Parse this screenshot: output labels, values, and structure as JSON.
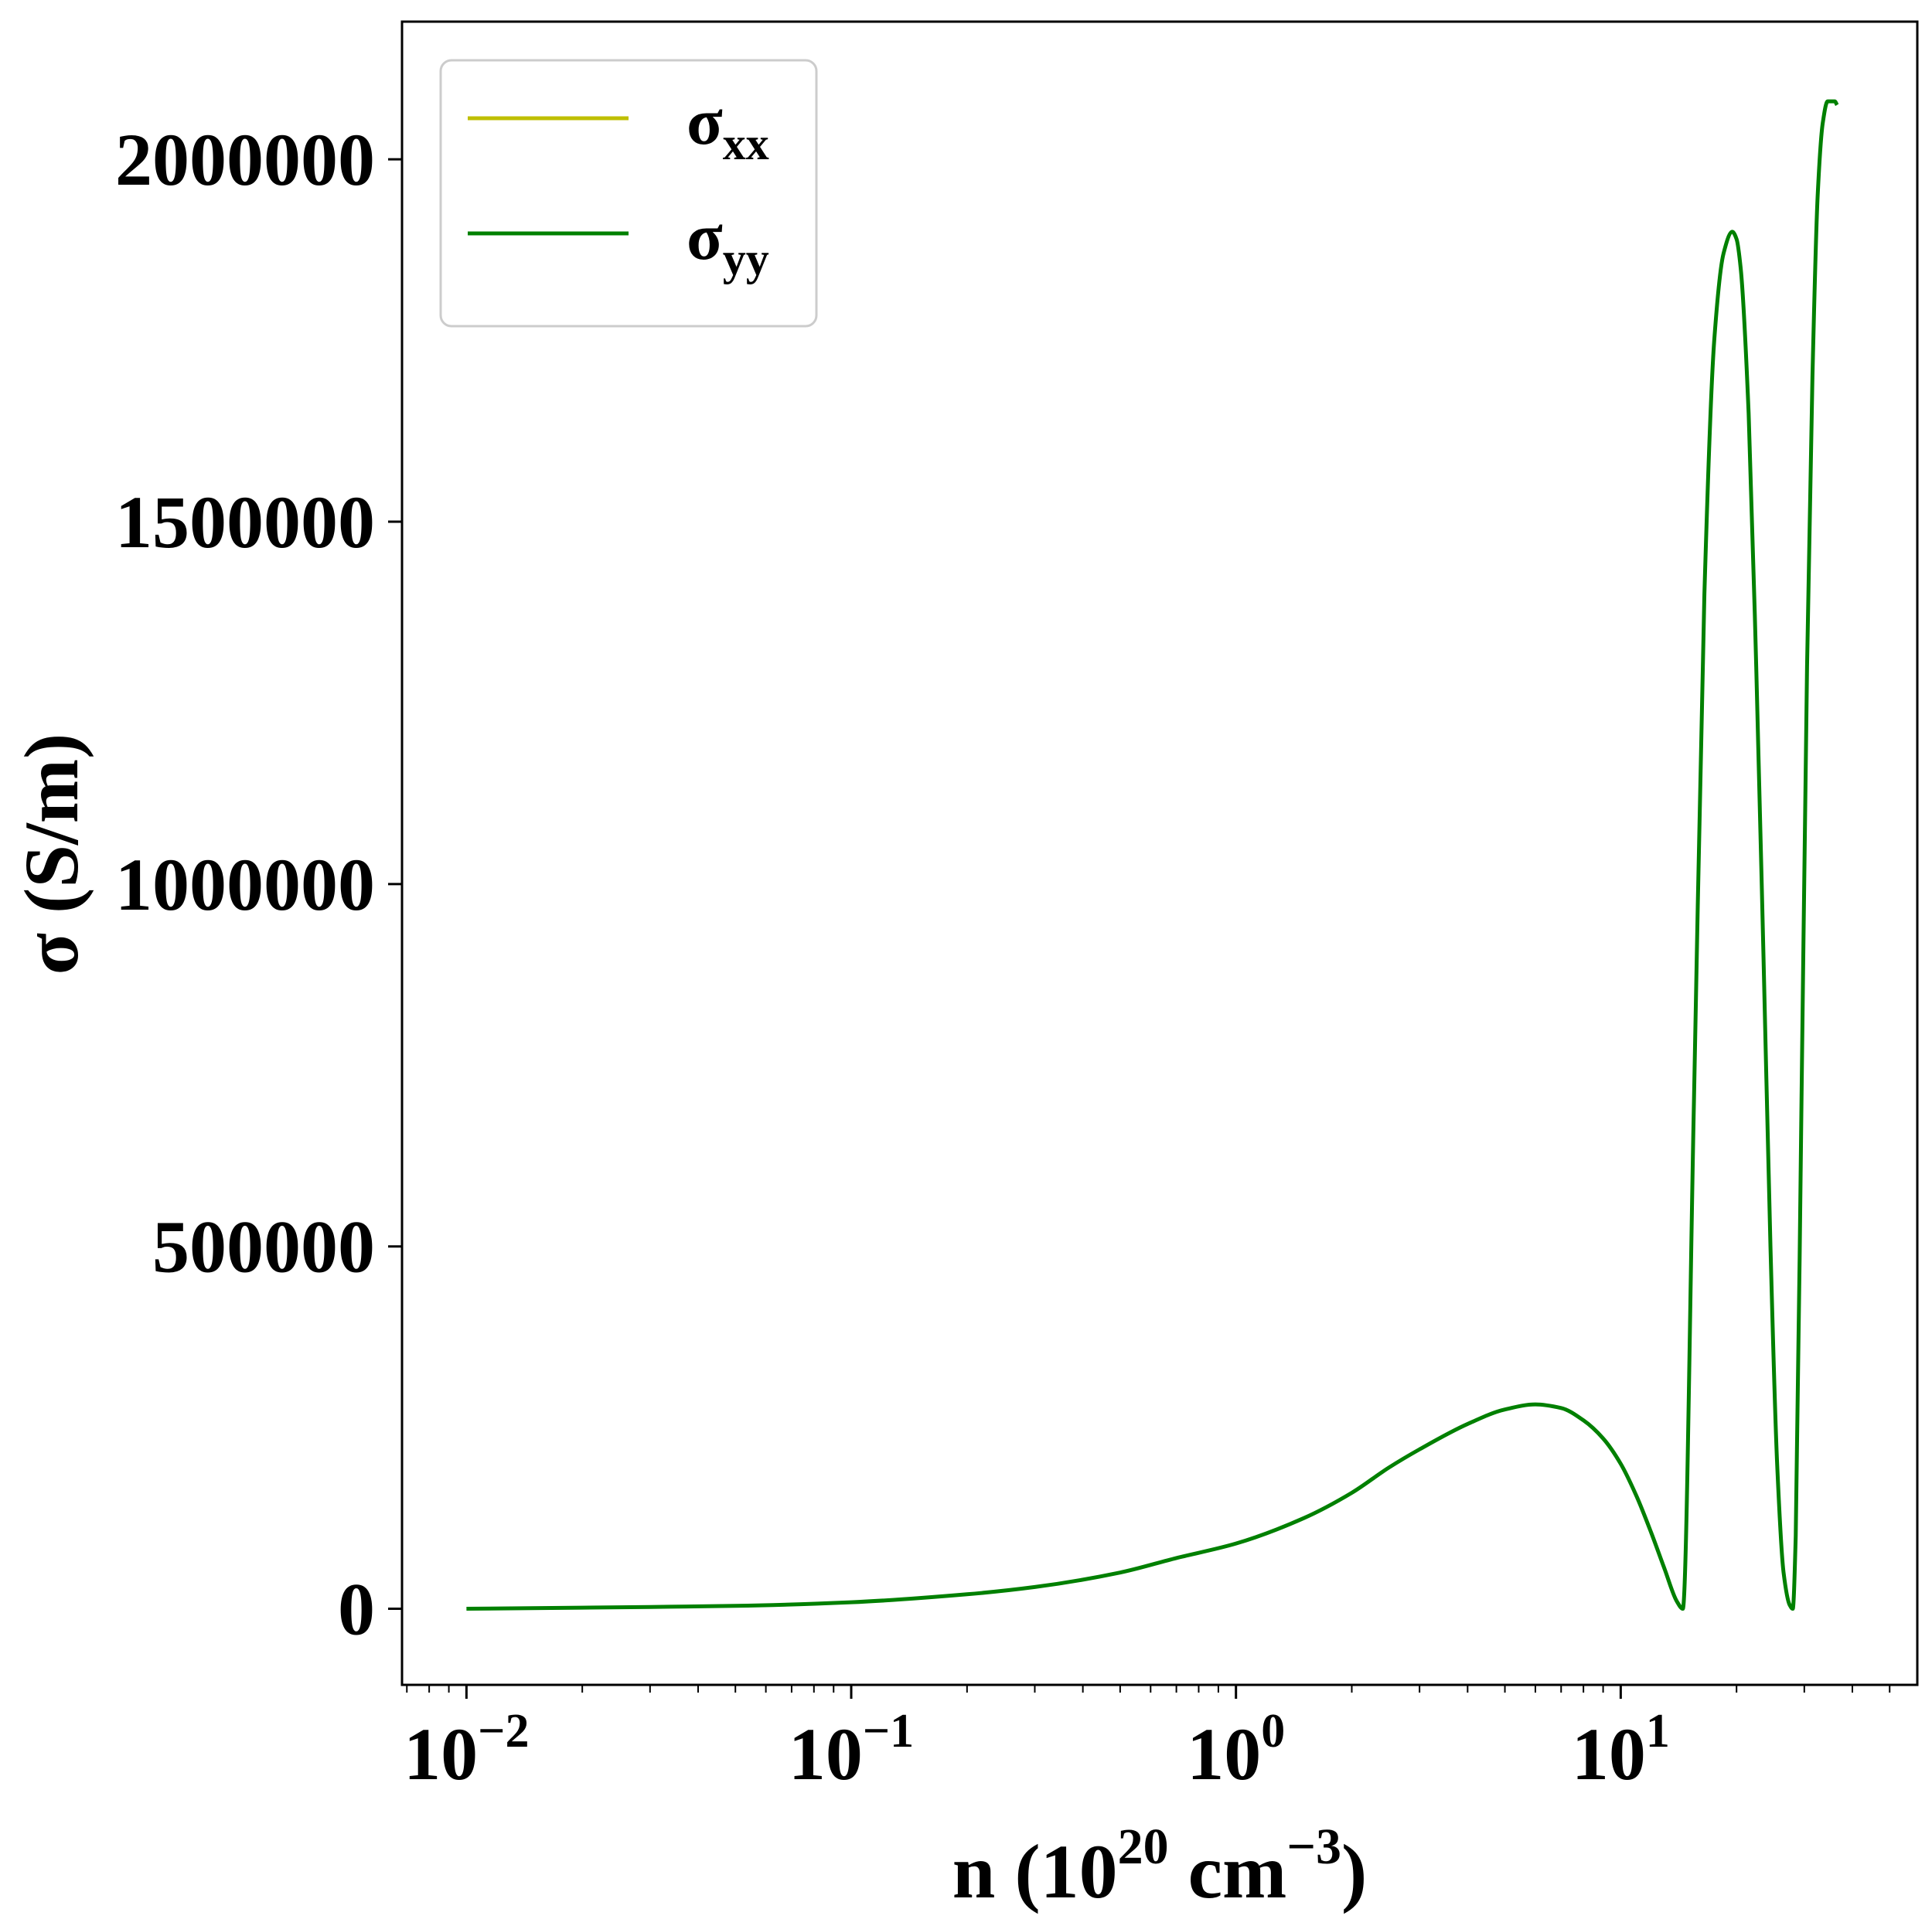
{
  "chart_data": {
    "type": "line",
    "xscale": "log",
    "xlim": [
      0.0068,
      59.0
    ],
    "ylim": [
      -105000,
      2190000
    ],
    "grid": false,
    "legend_position": "upper-left",
    "x_ticks": [
      {
        "value": 0.01,
        "base": "10",
        "exp": "−2"
      },
      {
        "value": 0.1,
        "base": "10",
        "exp": "−1"
      },
      {
        "value": 1,
        "base": "10",
        "exp": "0"
      },
      {
        "value": 10,
        "base": "10",
        "exp": "1"
      }
    ],
    "y_ticks": [
      {
        "value": 0,
        "label": "0"
      },
      {
        "value": 500000,
        "label": "500000"
      },
      {
        "value": 1000000,
        "label": "1000000"
      },
      {
        "value": 1500000,
        "label": "1500000"
      },
      {
        "value": 2000000,
        "label": "2000000"
      }
    ],
    "xlabel": {
      "prefix": "n (10",
      "exp1": "20",
      "mid": " cm",
      "exp2": "−3",
      "suffix": ")"
    },
    "ylabel": "σ (S/m)",
    "series": [
      {
        "name": "σxx",
        "legend_base": "σ",
        "legend_sub": "xx",
        "color": "#bfbf00",
        "x": [],
        "y": []
      },
      {
        "name": "σyy",
        "legend_base": "σ",
        "legend_sub": "yy",
        "color": "#008000",
        "x": [
          0.01,
          0.02,
          0.03,
          0.05,
          0.1,
          0.2,
          0.3,
          0.5,
          0.7,
          1.0,
          1.5,
          2.0,
          2.5,
          3.0,
          4.0,
          5.0,
          6.0,
          7.0,
          8.0,
          9.0,
          10.0,
          11.0,
          12.0,
          13.0,
          14.0,
          14.5,
          15.5,
          16.5,
          17.5,
          18.5,
          19.5,
          20.0,
          20.5,
          21.5,
          22.5,
          23.5,
          24.5,
          25.5,
          26.5,
          27.5,
          28.0,
          28.5,
          29.5,
          30.5,
          31.5,
          32.5,
          33.5,
          34.5,
          35.5,
          36.0,
          36.5
        ],
        "y": [
          0,
          1500,
          2500,
          4000,
          9000,
          20000,
          30000,
          50000,
          70000,
          90000,
          125000,
          160000,
          195000,
          220000,
          255000,
          275000,
          282000,
          277000,
          260000,
          235000,
          200000,
          155000,
          105000,
          55000,
          10000,
          0,
          700000,
          1400000,
          1750000,
          1870000,
          1900000,
          1890000,
          1850000,
          1650000,
          1300000,
          900000,
          500000,
          200000,
          50000,
          5000,
          0,
          100000,
          700000,
          1300000,
          1700000,
          1950000,
          2050000,
          2080000,
          2080000,
          2080000,
          2075000
        ]
      }
    ]
  }
}
